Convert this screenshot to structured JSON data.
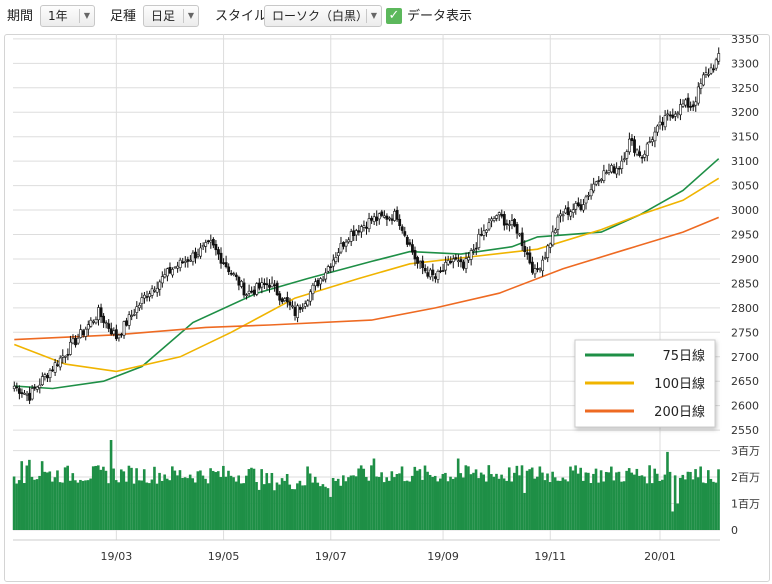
{
  "toolbar": {
    "period_label": "期間",
    "period_value": "1年",
    "ashi_label": "足種",
    "ashi_value": "日足",
    "style_label": "スタイル",
    "style_value": "ローソク（白黒）",
    "data_display_label": "データ表示",
    "data_display_checked": true
  },
  "colors": {
    "ma75": "#1e8f46",
    "ma100": "#f0b400",
    "ma200": "#ee6a22",
    "volume": "#1e8f46",
    "candle": "#111111",
    "grid": "#dddddd"
  },
  "chart_data": {
    "type": "candlestick",
    "x_ticks": [
      "19/03",
      "19/05",
      "19/07",
      "19/09",
      "19/11",
      "20/01"
    ],
    "price_ticks": [
      2550,
      2600,
      2650,
      2700,
      2750,
      2800,
      2850,
      2900,
      2950,
      3000,
      3050,
      3100,
      3150,
      3200,
      3250,
      3300,
      3350
    ],
    "price_range": [
      2540,
      3360
    ],
    "volume_ticks": [
      "0",
      "1百万",
      "2百万",
      "3百万"
    ],
    "volume_range": [
      0,
      3400000
    ],
    "legend_position": "right",
    "price_anchors": [
      [
        0,
        2640
      ],
      [
        6,
        2620
      ],
      [
        12,
        2660
      ],
      [
        22,
        2720
      ],
      [
        33,
        2790
      ],
      [
        40,
        2740
      ],
      [
        52,
        2830
      ],
      [
        62,
        2880
      ],
      [
        77,
        2930
      ],
      [
        84,
        2880
      ],
      [
        91,
        2830
      ],
      [
        100,
        2850
      ],
      [
        110,
        2790
      ],
      [
        120,
        2860
      ],
      [
        131,
        2950
      ],
      [
        140,
        2980
      ],
      [
        150,
        2990
      ],
      [
        158,
        2890
      ],
      [
        165,
        2860
      ],
      [
        172,
        2900
      ],
      [
        176,
        2880
      ],
      [
        182,
        2940
      ],
      [
        189,
        2990
      ],
      [
        197,
        2960
      ],
      [
        204,
        2870
      ],
      [
        208,
        2910
      ],
      [
        214,
        2990
      ],
      [
        222,
        3010
      ],
      [
        229,
        3070
      ],
      [
        237,
        3090
      ],
      [
        241,
        3140
      ],
      [
        246,
        3110
      ],
      [
        250,
        3150
      ],
      [
        256,
        3190
      ],
      [
        262,
        3215
      ],
      [
        266,
        3215
      ],
      [
        270,
        3270
      ],
      [
        274,
        3295
      ],
      [
        276,
        3310
      ]
    ],
    "series": [
      {
        "name": "75日線",
        "color": "#1e8f46",
        "points": [
          [
            0,
            2640
          ],
          [
            15,
            2635
          ],
          [
            35,
            2650
          ],
          [
            50,
            2680
          ],
          [
            70,
            2770
          ],
          [
            95,
            2830
          ],
          [
            115,
            2860
          ],
          [
            140,
            2895
          ],
          [
            155,
            2915
          ],
          [
            175,
            2910
          ],
          [
            195,
            2925
          ],
          [
            205,
            2945
          ],
          [
            230,
            2955
          ],
          [
            245,
            2990
          ],
          [
            262,
            3040
          ],
          [
            276,
            3105
          ]
        ]
      },
      {
        "name": "100日線",
        "color": "#f0b400",
        "points": [
          [
            0,
            2725
          ],
          [
            20,
            2685
          ],
          [
            40,
            2670
          ],
          [
            65,
            2700
          ],
          [
            85,
            2750
          ],
          [
            110,
            2820
          ],
          [
            135,
            2860
          ],
          [
            155,
            2890
          ],
          [
            180,
            2905
          ],
          [
            205,
            2920
          ],
          [
            230,
            2960
          ],
          [
            245,
            2990
          ],
          [
            262,
            3020
          ],
          [
            276,
            3065
          ]
        ]
      },
      {
        "name": "200日線",
        "color": "#ee6a22",
        "points": [
          [
            0,
            2735
          ],
          [
            40,
            2745
          ],
          [
            75,
            2760
          ],
          [
            100,
            2765
          ],
          [
            140,
            2775
          ],
          [
            165,
            2800
          ],
          [
            190,
            2830
          ],
          [
            215,
            2880
          ],
          [
            240,
            2920
          ],
          [
            262,
            2955
          ],
          [
            276,
            2985
          ]
        ]
      }
    ],
    "volume_base": 2100000,
    "volume_spikes": [
      [
        3,
        2600000
      ],
      [
        6,
        2650000
      ],
      [
        11,
        2600000
      ],
      [
        38,
        3400000
      ],
      [
        97,
        2300000
      ],
      [
        115,
        2400000
      ],
      [
        141,
        2700000
      ],
      [
        152,
        2400000
      ],
      [
        174,
        2700000
      ],
      [
        186,
        2450000
      ],
      [
        206,
        2400000
      ],
      [
        222,
        2350000
      ],
      [
        256,
        2950000
      ],
      [
        264,
        2200000
      ]
    ],
    "volume_dips": [
      [
        124,
        1250000
      ],
      [
        200,
        1400000
      ],
      [
        258,
        700000
      ],
      [
        260,
        1000000
      ]
    ]
  }
}
